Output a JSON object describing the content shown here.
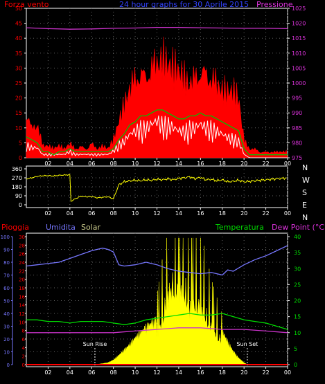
{
  "colors": {
    "wind": "#ff0000",
    "gust_fill": "#ff0000",
    "wind_avg": "#00c000",
    "wind_min": "#ffffff",
    "pressure": "#cc33cc",
    "direction": "#ffff00",
    "rain": "#ff0000",
    "humidity": "#7777ff",
    "solar": "#ffff00",
    "temperature": "#00dd00",
    "dewpoint": "#cc33cc",
    "axis": "#ffffff",
    "grid": "#666666",
    "frame": "#ffffff"
  },
  "header": {
    "left_label": "Forza vento",
    "title": "24 hour graphs for 30 Aprile 2015",
    "right_label": "Pressione"
  },
  "labels": {
    "rain": "Pioggia",
    "humidity": "Umidita",
    "solar": "Solar",
    "temperature": "Temperatura",
    "dewpoint": "Dew Point (°C)",
    "sunrise": "Sun Rise",
    "sunset": "Sun Set"
  },
  "chart_data": [
    {
      "type": "line",
      "name": "wind-pressure",
      "x_ticks": [
        "02",
        "04",
        "06",
        "08",
        "10",
        "12",
        "14",
        "16",
        "18",
        "20",
        "22",
        "00"
      ],
      "y_left_ticks": [
        0,
        5,
        10,
        15,
        20,
        25,
        30,
        35,
        40,
        45,
        50
      ],
      "y_right_ticks": [
        975,
        980,
        985,
        990,
        995,
        1000,
        1005,
        1010,
        1015,
        1020,
        1025
      ],
      "ylim_left": [
        0,
        50
      ],
      "ylim_right": [
        975,
        1025
      ],
      "xlim_hours": [
        0,
        24
      ],
      "grid": true,
      "gust": {
        "x": [
          0,
          0.5,
          1,
          1.5,
          2,
          2.5,
          3,
          3.5,
          4,
          4.5,
          5,
          5.5,
          6,
          6.5,
          7,
          7.5,
          8,
          8.5,
          9,
          9.5,
          10,
          10.5,
          11,
          11.5,
          12,
          12.5,
          13,
          13.5,
          14,
          14.5,
          15,
          15.5,
          16,
          16.5,
          17,
          17.5,
          18,
          18.5,
          19,
          19.5,
          20,
          20.5,
          21,
          21.5,
          22,
          22.5,
          23,
          23.5,
          24
        ],
        "values": [
          17,
          10,
          12,
          4,
          4,
          3,
          4,
          3,
          5,
          3,
          4,
          3,
          5,
          3,
          4,
          3,
          6,
          12,
          18,
          24,
          28,
          30,
          29,
          32,
          33,
          34,
          31,
          30,
          29,
          27,
          26,
          28,
          31,
          30,
          28,
          26,
          23,
          22,
          22,
          20,
          6,
          3,
          3,
          2,
          2,
          2,
          2,
          2,
          2
        ]
      },
      "wind": {
        "x": [
          0,
          0.5,
          1,
          1.5,
          2,
          2.5,
          3,
          3.5,
          4,
          4.5,
          5,
          5.5,
          6,
          6.5,
          7,
          7.5,
          8,
          8.5,
          9,
          9.5,
          10,
          10.5,
          11,
          11.5,
          12,
          12.5,
          13,
          13.5,
          14,
          14.5,
          15,
          15.5,
          16,
          16.5,
          17,
          17.5,
          18,
          18.5,
          19,
          19.5,
          20,
          20.5,
          21,
          21.5,
          22,
          22.5,
          23,
          23.5,
          24
        ],
        "values": [
          7,
          6,
          5,
          2,
          2,
          1,
          2,
          2,
          3,
          2,
          2,
          2,
          2,
          2,
          2,
          2,
          3,
          6,
          8,
          11,
          12,
          14,
          14,
          15,
          16,
          16,
          15,
          14,
          13,
          13,
          14,
          14,
          15,
          14,
          14,
          13,
          12,
          11,
          10,
          9,
          3,
          1,
          1,
          1,
          1,
          1,
          1,
          1,
          1
        ]
      },
      "wind_min": {
        "x": [
          0,
          0.5,
          1,
          1.5,
          2,
          2.5,
          3,
          3.5,
          4,
          4.5,
          5,
          5.5,
          6,
          6.5,
          7,
          7.5,
          8,
          8.5,
          9,
          9.5,
          10,
          10.5,
          11,
          11.5,
          12,
          12.5,
          13,
          13.5,
          14,
          14.5,
          15,
          15.5,
          16,
          16.5,
          17,
          17.5,
          18,
          18.5,
          19,
          19.5,
          20,
          20.5,
          21,
          21.5,
          22,
          22.5,
          23,
          23.5,
          24
        ],
        "values": [
          4,
          3,
          3,
          1,
          1,
          1,
          1,
          1,
          2,
          1,
          1,
          1,
          1,
          1,
          1,
          1,
          2,
          4,
          5,
          7,
          8,
          9,
          9,
          10,
          11,
          10,
          10,
          9,
          8,
          8,
          9,
          9,
          10,
          9,
          9,
          8,
          7,
          6,
          6,
          5,
          1,
          0,
          0,
          0,
          0,
          0,
          0,
          0,
          0
        ]
      },
      "pressure": {
        "x": [
          0,
          2,
          4,
          6,
          8,
          10,
          12,
          14,
          16,
          18,
          20,
          22,
          24
        ],
        "values": [
          1018.5,
          1018.2,
          1018,
          1018.1,
          1018.3,
          1018.4,
          1018.6,
          1018.6,
          1018.5,
          1018.4,
          1018.3,
          1018.3,
          1018.2
        ]
      }
    },
    {
      "type": "line",
      "name": "wind-direction",
      "y_ticks": [
        0,
        90,
        180,
        270,
        360
      ],
      "y_right_labels": [
        "N",
        "W",
        "S",
        "E",
        "N"
      ],
      "ylim": [
        0,
        360
      ],
      "grid": true,
      "direction": {
        "x": [
          0,
          0.5,
          1,
          1.5,
          2,
          2.5,
          3,
          3.5,
          4,
          4.1,
          4.5,
          5,
          5.5,
          6,
          6.5,
          7,
          7.5,
          8,
          8.5,
          9,
          9.5,
          10,
          10.5,
          11,
          11.5,
          12,
          12.5,
          13,
          13.5,
          14,
          14.5,
          15,
          15.5,
          16,
          16.5,
          17,
          17.5,
          18,
          18.5,
          19,
          19.5,
          20,
          20.5,
          21,
          21.5,
          22,
          22.5,
          23,
          23.5,
          24
        ],
        "values": [
          260,
          270,
          285,
          290,
          292,
          288,
          295,
          298,
          300,
          35,
          60,
          85,
          80,
          82,
          70,
          75,
          80,
          60,
          200,
          230,
          240,
          245,
          240,
          250,
          245,
          255,
          250,
          260,
          250,
          265,
          270,
          280,
          260,
          275,
          250,
          255,
          240,
          250,
          230,
          235,
          245,
          230,
          235,
          240,
          245,
          250,
          255,
          260,
          265,
          270
        ]
      }
    },
    {
      "type": "line",
      "name": "rain-humidity-solar-temperature",
      "y_rain_ticks": [
        0,
        2,
        4,
        6,
        8,
        10,
        12,
        14,
        16,
        18,
        20,
        22,
        24,
        26,
        28,
        30
      ],
      "y_humidity_ticks": [
        0,
        10,
        20,
        30,
        40,
        50,
        60,
        70,
        80,
        90,
        100
      ],
      "y_temp_ticks": [
        0,
        5,
        10,
        15,
        20,
        25,
        30,
        35,
        40
      ],
      "ylim_humidity": [
        0,
        100
      ],
      "ylim_temp": [
        0,
        40
      ],
      "sunrise_hour": 6.3,
      "sunset_hour": 20.3,
      "humidity": {
        "x": [
          0,
          1,
          2,
          3,
          4,
          5,
          6,
          7,
          7.5,
          8,
          8.5,
          9,
          10,
          11,
          12,
          13,
          14,
          15,
          16,
          17,
          18,
          18.5,
          19,
          20,
          21,
          22,
          23,
          24
        ],
        "values": [
          77,
          78,
          79,
          80,
          83,
          86,
          89,
          91,
          90,
          88,
          78,
          77,
          78,
          80,
          78,
          75,
          73,
          72,
          71,
          72,
          70,
          74,
          73,
          78,
          82,
          85,
          89,
          93
        ]
      },
      "temperature": {
        "x": [
          0,
          1,
          2,
          3,
          4,
          5,
          6,
          7,
          8,
          9,
          10,
          11,
          12,
          13,
          14,
          15,
          16,
          17,
          18,
          19,
          20,
          21,
          22,
          23,
          24
        ],
        "values": [
          14,
          14,
          13.5,
          13.5,
          13,
          13.5,
          13.5,
          13.5,
          13,
          12.5,
          13,
          14,
          14.5,
          15,
          15.5,
          16,
          15.5,
          15.5,
          16,
          15,
          14,
          13.5,
          13,
          12,
          11
        ]
      },
      "dewpoint": {
        "x": [
          0,
          2,
          4,
          6,
          8,
          10,
          12,
          14,
          16,
          18,
          20,
          22,
          24
        ],
        "values": [
          10,
          10,
          10,
          10,
          10,
          10.5,
          11,
          11.5,
          11.5,
          11,
          11,
          10.5,
          10
        ]
      },
      "solar": {
        "x": [
          6.3,
          7,
          7.5,
          8,
          8.5,
          9,
          9.5,
          10,
          10.5,
          11,
          11.5,
          12,
          12.5,
          13,
          13.5,
          14,
          14.5,
          15,
          15.5,
          16,
          16.5,
          17,
          17.5,
          18,
          18.5,
          19,
          19.5,
          20,
          20.3
        ],
        "values": [
          0,
          8,
          15,
          35,
          70,
          110,
          150,
          200,
          240,
          280,
          310,
          340,
          520,
          780,
          900,
          860,
          870,
          620,
          700,
          650,
          540,
          420,
          330,
          250,
          170,
          100,
          50,
          15,
          0
        ]
      }
    }
  ]
}
